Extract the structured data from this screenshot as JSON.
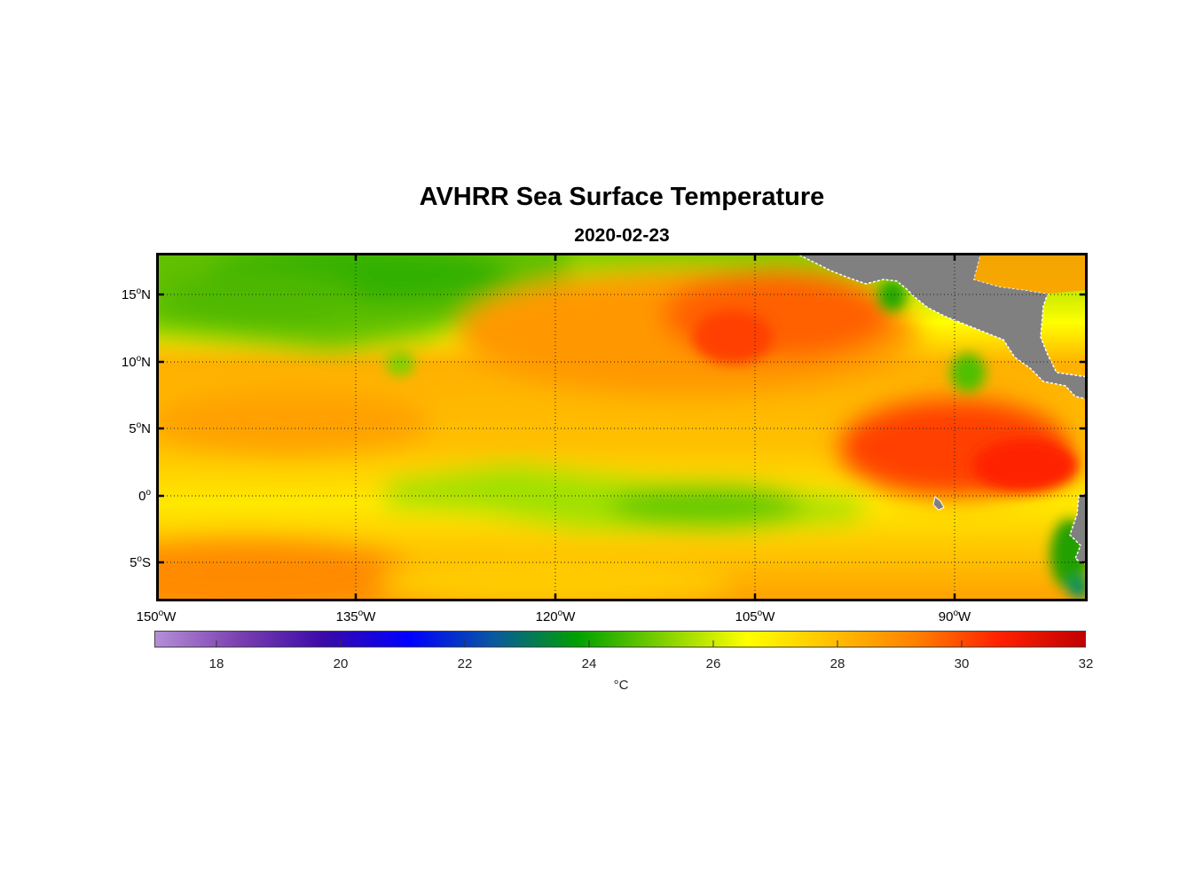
{
  "title": "AVHRR Sea Surface Temperature",
  "subtitle": "2020-02-23",
  "map": {
    "lon_labels": [
      {
        "text": "150",
        "hemi": "W"
      },
      {
        "text": "135",
        "hemi": "W"
      },
      {
        "text": "120",
        "hemi": "W"
      },
      {
        "text": "105",
        "hemi": "W"
      },
      {
        "text": "90",
        "hemi": "W"
      }
    ],
    "lat_labels": [
      {
        "text": "15",
        "hemi": "N"
      },
      {
        "text": "10",
        "hemi": "N"
      },
      {
        "text": "5",
        "hemi": "N"
      },
      {
        "text": "0",
        "hemi": ""
      },
      {
        "text": "5",
        "hemi": "S"
      }
    ],
    "extent": {
      "lon_min": -150,
      "lon_max": -80,
      "lat_min": -8,
      "lat_max": 18
    },
    "land_color": "#808080",
    "grid": "dotted"
  },
  "colorbar": {
    "min": 17,
    "max": 32,
    "ticks": [
      "18",
      "20",
      "22",
      "24",
      "26",
      "28",
      "30",
      "32"
    ],
    "unit": "°C",
    "stops": [
      "#b48fd6",
      "#7a3fb0",
      "#3a0aa8",
      "#0000ff",
      "#0a58a0",
      "#00a000",
      "#7fd000",
      "#ffff00",
      "#ffc000",
      "#ff8000",
      "#ff2000",
      "#c00000"
    ]
  }
}
